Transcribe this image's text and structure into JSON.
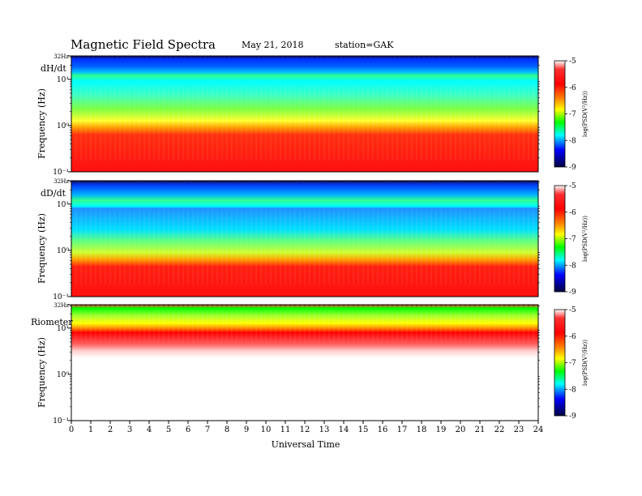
{
  "header": {
    "title": "Magnetic  Field  Spectra",
    "date": "May 21, 2018",
    "station": "station=GAK"
  },
  "chart_data": [
    {
      "type": "heatmap",
      "panel_label": "dH/dt",
      "ylabel": "Frequency  (Hz)",
      "ytick_labels": [
        "32Hz",
        "10¹",
        "10⁰",
        "10⁻¹"
      ],
      "y_axis_scale": "log",
      "ylim": [
        0.1,
        32
      ],
      "colorbar_label": "log(PSD(V²/Hz))",
      "colorbar_ticks": [
        "-5",
        "-6",
        "-7",
        "-8",
        "-9"
      ],
      "colorbar_range": [
        -9,
        -5
      ]
    },
    {
      "type": "heatmap",
      "panel_label": "dD/dt",
      "ylabel": "Frequency  (Hz)",
      "ytick_labels": [
        "32Hz",
        "10¹",
        "10⁰",
        "10⁻¹"
      ],
      "y_axis_scale": "log",
      "ylim": [
        0.1,
        32
      ],
      "colorbar_label": "log(PSD(V²/Hz))",
      "colorbar_ticks": [
        "-5",
        "-6",
        "-7",
        "-8",
        "-9"
      ],
      "colorbar_range": [
        -9,
        -5
      ]
    },
    {
      "type": "heatmap",
      "panel_label": "Riometer",
      "ylabel": "Frequency  (Hz)",
      "ytick_labels": [
        "32Hz",
        "10¹",
        "10⁰",
        "10⁻¹"
      ],
      "y_axis_scale": "log",
      "ylim": [
        0.1,
        32
      ],
      "colorbar_label": "log(PSD(V²/Hz))",
      "colorbar_ticks": [
        "-5",
        "-6",
        "-7",
        "-8",
        "-9"
      ],
      "colorbar_range": [
        -9,
        -5
      ]
    }
  ],
  "x_axis": {
    "xlabel": "Universal Time",
    "xlim": [
      0,
      24
    ],
    "ticks": [
      "0",
      "1",
      "2",
      "3",
      "4",
      "5",
      "6",
      "7",
      "8",
      "9",
      "10",
      "11",
      "12",
      "13",
      "14",
      "15",
      "16",
      "17",
      "18",
      "19",
      "20",
      "21",
      "22",
      "23",
      "24"
    ]
  }
}
